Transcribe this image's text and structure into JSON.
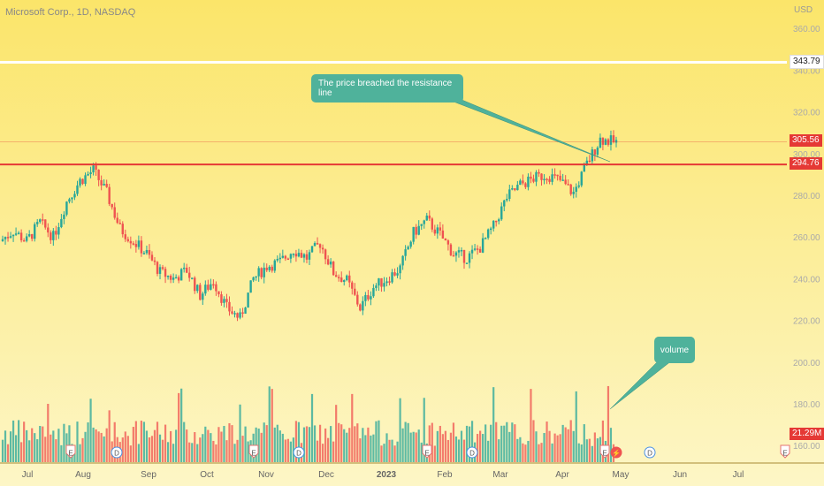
{
  "header": {
    "title": "Microsoft Corp., 1D, NASDAQ",
    "currency": "USD"
  },
  "colors": {
    "bg_top": "#fbe56a",
    "bg_bottom": "#fdf6c6",
    "up": "#26a69a",
    "down": "#ef5350",
    "resistance": "#e53935",
    "callout": "#4fb29b"
  },
  "annotations": {
    "resistance_note": "The price breached the resistance line",
    "volume_note": "volume"
  },
  "price_labels": {
    "white_line": "343.79",
    "last_price": "305.56",
    "resistance": "294.76",
    "volume": "21.29M"
  },
  "events": [
    {
      "type": "E",
      "date": "Jul 26"
    },
    {
      "type": "D",
      "date": "Aug 17"
    },
    {
      "type": "E",
      "date": "Oct 25"
    },
    {
      "type": "D",
      "date": "Nov 16"
    },
    {
      "type": "E",
      "date": "Jan 24"
    },
    {
      "type": "D",
      "date": "Feb 15"
    },
    {
      "type": "E",
      "date": "Apr 25"
    },
    {
      "type": "⚡",
      "date": "Apr 27"
    },
    {
      "type": "D",
      "date": "May 17"
    },
    {
      "type": "E",
      "date": "Jul 25"
    }
  ],
  "chart_data": {
    "type": "candlestick",
    "title": "Microsoft Corp., 1D, NASDAQ",
    "y_axis": {
      "ticks": [
        160,
        180,
        200,
        220,
        240,
        260,
        280,
        300,
        320,
        340,
        360
      ],
      "ylim": [
        152,
        364
      ],
      "position": "right"
    },
    "x_axis": {
      "ticks": [
        "Jul",
        "Aug",
        "Sep",
        "Oct",
        "Nov",
        "Dec",
        "2023",
        "Feb",
        "Mar",
        "Apr",
        "May",
        "Jun",
        "Jul"
      ]
    },
    "resistance_line": 294.76,
    "horizontal_line": 343.79,
    "last_close": 305.56,
    "close_series": [
      {
        "date": "Jun 29",
        "close": 258
      },
      {
        "date": "Jul 6",
        "close": 263
      },
      {
        "date": "Jul 13",
        "close": 258
      },
      {
        "date": "Jul 20",
        "close": 267
      },
      {
        "date": "Jul 27",
        "close": 260
      },
      {
        "date": "Aug 3",
        "close": 277
      },
      {
        "date": "Aug 10",
        "close": 287
      },
      {
        "date": "Aug 17",
        "close": 292
      },
      {
        "date": "Aug 24",
        "close": 281
      },
      {
        "date": "Aug 31",
        "close": 264
      },
      {
        "date": "Sep 7",
        "close": 258
      },
      {
        "date": "Sep 14",
        "close": 252
      },
      {
        "date": "Sep 21",
        "close": 243
      },
      {
        "date": "Sep 28",
        "close": 240
      },
      {
        "date": "Oct 5",
        "close": 244
      },
      {
        "date": "Oct 12",
        "close": 232
      },
      {
        "date": "Oct 19",
        "close": 239
      },
      {
        "date": "Oct 26",
        "close": 226
      },
      {
        "date": "Nov 2",
        "close": 221
      },
      {
        "date": "Nov 9",
        "close": 240
      },
      {
        "date": "Nov 16",
        "close": 246
      },
      {
        "date": "Nov 23",
        "close": 248
      },
      {
        "date": "Nov 30",
        "close": 254
      },
      {
        "date": "Dec 7",
        "close": 250
      },
      {
        "date": "Dec 14",
        "close": 257
      },
      {
        "date": "Dec 21",
        "close": 243
      },
      {
        "date": "Dec 28",
        "close": 239
      },
      {
        "date": "Jan 4",
        "close": 226
      },
      {
        "date": "Jan 11",
        "close": 236
      },
      {
        "date": "Jan 18",
        "close": 240
      },
      {
        "date": "Jan 25",
        "close": 245
      },
      {
        "date": "Feb 1",
        "close": 262
      },
      {
        "date": "Feb 8",
        "close": 268
      },
      {
        "date": "Feb 15",
        "close": 261
      },
      {
        "date": "Feb 22",
        "close": 252
      },
      {
        "date": "Mar 1",
        "close": 250
      },
      {
        "date": "Mar 8",
        "close": 255
      },
      {
        "date": "Mar 15",
        "close": 265
      },
      {
        "date": "Mar 22",
        "close": 279
      },
      {
        "date": "Mar 29",
        "close": 285
      },
      {
        "date": "Apr 5",
        "close": 288
      },
      {
        "date": "Apr 12",
        "close": 290
      },
      {
        "date": "Apr 19",
        "close": 287
      },
      {
        "date": "Apr 24",
        "close": 281
      },
      {
        "date": "Apr 26",
        "close": 295
      },
      {
        "date": "Apr 28",
        "close": 307
      },
      {
        "date": "May 1",
        "close": 305.56
      }
    ],
    "volume": {
      "last": "21.29M"
    },
    "legend": "none",
    "grid": false
  }
}
